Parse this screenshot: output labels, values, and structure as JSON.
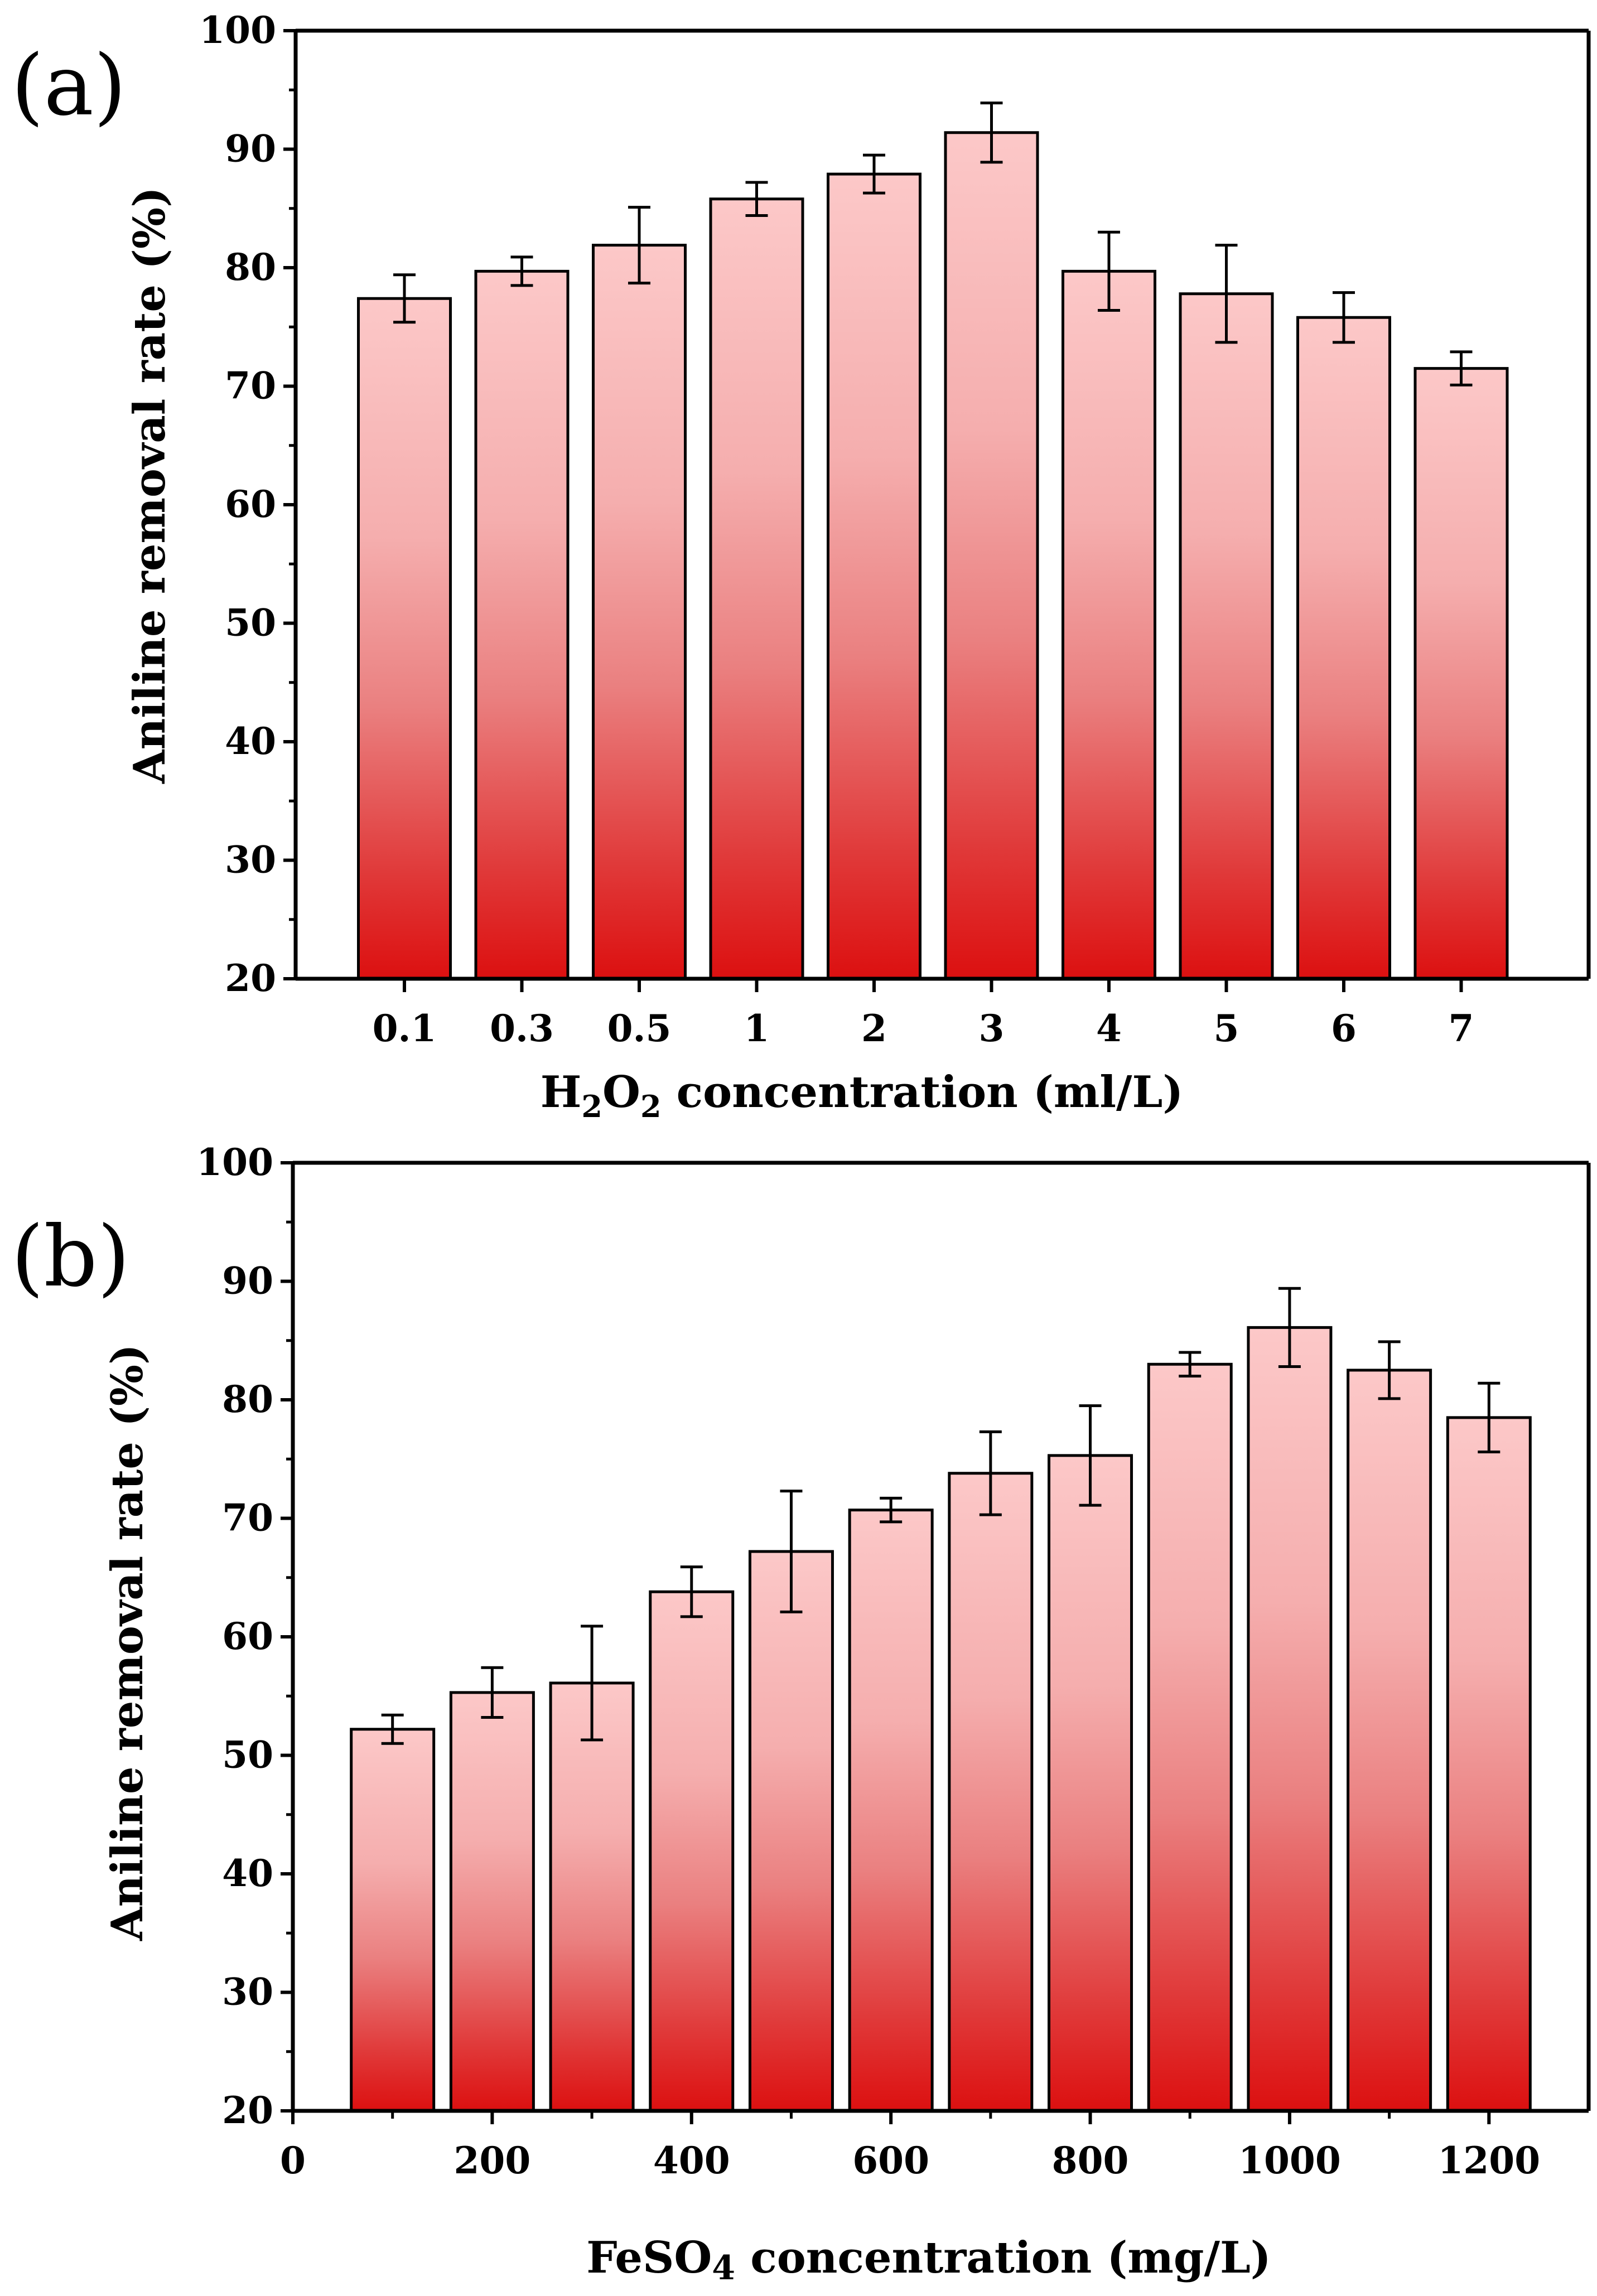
{
  "chart_data": [
    {
      "panel_label": "(a)",
      "type": "bar",
      "categories": [
        "0.1",
        "0.3",
        "0.5",
        "1",
        "2",
        "3",
        "4",
        "5",
        "6",
        "7"
      ],
      "values": [
        77.4,
        79.7,
        81.9,
        85.8,
        87.9,
        91.4,
        79.7,
        77.8,
        75.8,
        71.5
      ],
      "errors": [
        2.0,
        1.2,
        3.2,
        1.4,
        1.6,
        2.5,
        3.3,
        4.1,
        2.1,
        1.4
      ],
      "xlabel_pre": "H",
      "xlabel_sub1": "2",
      "xlabel_mid": "O",
      "xlabel_sub2": "2",
      "xlabel_post": " concentration (ml/L)",
      "ylabel": "Aniline removal rate (%)",
      "ylim": [
        20,
        100
      ],
      "yticks": [
        "20",
        "30",
        "40",
        "50",
        "60",
        "70",
        "80",
        "90",
        "100"
      ]
    },
    {
      "panel_label": "(b)",
      "type": "bar",
      "x": [
        100,
        200,
        300,
        400,
        500,
        600,
        700,
        800,
        900,
        1000,
        1100,
        1200
      ],
      "values": [
        52.2,
        55.3,
        56.1,
        63.8,
        67.2,
        70.7,
        73.8,
        75.3,
        83.0,
        86.1,
        82.5,
        78.5
      ],
      "errors": [
        1.2,
        2.1,
        4.8,
        2.1,
        5.1,
        1.0,
        3.5,
        4.2,
        1.0,
        3.3,
        2.4,
        2.9
      ],
      "xlabel_pre": "FeSO",
      "xlabel_sub1": "4",
      "xlabel_post": " concentration (mg/L)",
      "ylabel": "Aniline removal rate (%)",
      "xlim": [
        0,
        1300
      ],
      "xticks": [
        "0",
        "200",
        "400",
        "600",
        "800",
        "1000",
        "1200"
      ],
      "ylim": [
        20,
        100
      ],
      "yticks": [
        "20",
        "30",
        "40",
        "50",
        "60",
        "70",
        "80",
        "90",
        "100"
      ]
    }
  ],
  "colors": {
    "bar_top": "#fcc8c8",
    "bar_mid": "#f3a0a0",
    "bar_bottom": "#dc1818",
    "axis": "#000000"
  }
}
